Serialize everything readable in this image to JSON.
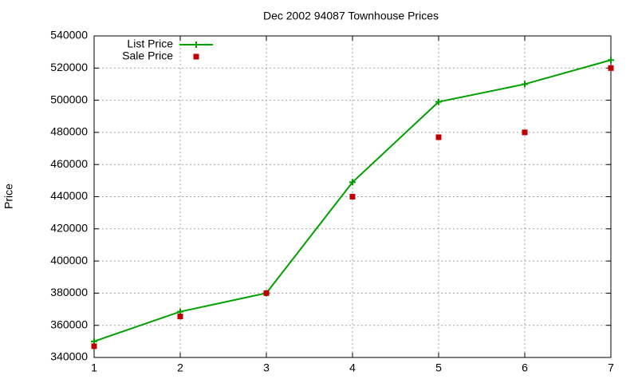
{
  "chart_data": {
    "type": "line",
    "title": "Dec 2002 94087 Townhouse Prices",
    "y_label": "Price",
    "x": [
      1,
      2,
      3,
      4,
      5,
      6,
      7
    ],
    "series": [
      {
        "name": "List Price",
        "color": "#00a000",
        "style": "linespoints",
        "values": [
          350000,
          368500,
          380000,
          449000,
          499000,
          510000,
          525000
        ]
      },
      {
        "name": "Sale Price",
        "color": "#c00000",
        "style": "points",
        "values": [
          347000,
          365500,
          380000,
          440000,
          477000,
          480000,
          520000
        ]
      }
    ],
    "xlim": [
      1,
      7
    ],
    "xticks": [
      1,
      2,
      3,
      4,
      5,
      6,
      7
    ],
    "ylim": [
      340000,
      540000
    ],
    "yticks": [
      340000,
      360000,
      380000,
      400000,
      420000,
      440000,
      460000,
      480000,
      500000,
      520000,
      540000
    ],
    "grid": true,
    "legend": "top-left"
  }
}
